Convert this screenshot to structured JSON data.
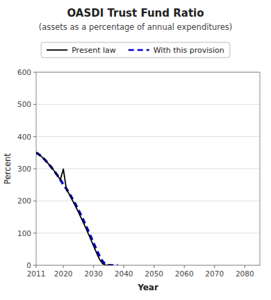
{
  "chart_data": {
    "type": "line",
    "title": "OASDI Trust Fund Ratio",
    "subtitle": "(assets as a percentage of annual expenditures)",
    "x_label": "Year",
    "y_label": "Percent",
    "xlim": [
      2011,
      2085
    ],
    "xticks": [
      2011,
      2020,
      2030,
      2040,
      2050,
      2060,
      2070,
      2080
    ],
    "ylim": [
      0,
      600
    ],
    "yticks": [
      0,
      100,
      200,
      300,
      400,
      500,
      600
    ],
    "grid": "y",
    "legend": "top",
    "series": [
      {
        "name": "Present law",
        "color": "#000000",
        "line_style": "solid",
        "x": [
          2011,
          2012,
          2013,
          2014,
          2015,
          2016,
          2017,
          2018,
          2019,
          2020,
          2021,
          2022,
          2023,
          2024,
          2025,
          2026,
          2027,
          2028,
          2029,
          2030,
          2031,
          2032,
          2033,
          2034,
          2035,
          2036
        ],
        "values": [
          350,
          344,
          336,
          327,
          316,
          305,
          293,
          280,
          266,
          299,
          236,
          220,
          202,
          184,
          165,
          145,
          125,
          104,
          82,
          60,
          38,
          18,
          5,
          0,
          0,
          0
        ]
      },
      {
        "name": "With this provision",
        "color": "#0000cc",
        "line_style": "dashed",
        "x": [
          2011,
          2012,
          2013,
          2014,
          2015,
          2016,
          2017,
          2018,
          2019,
          2020,
          2021,
          2022,
          2023,
          2024,
          2025,
          2026,
          2027,
          2028,
          2029,
          2030,
          2031,
          2032,
          2033,
          2034,
          2035,
          2036,
          2037,
          2038
        ],
        "values": [
          350,
          344,
          336,
          327,
          316,
          305,
          293,
          280,
          266,
          251,
          238,
          223,
          207,
          190,
          172,
          153,
          133,
          112,
          91,
          69,
          48,
          28,
          12,
          2,
          0,
          0,
          0,
          0
        ]
      }
    ]
  }
}
